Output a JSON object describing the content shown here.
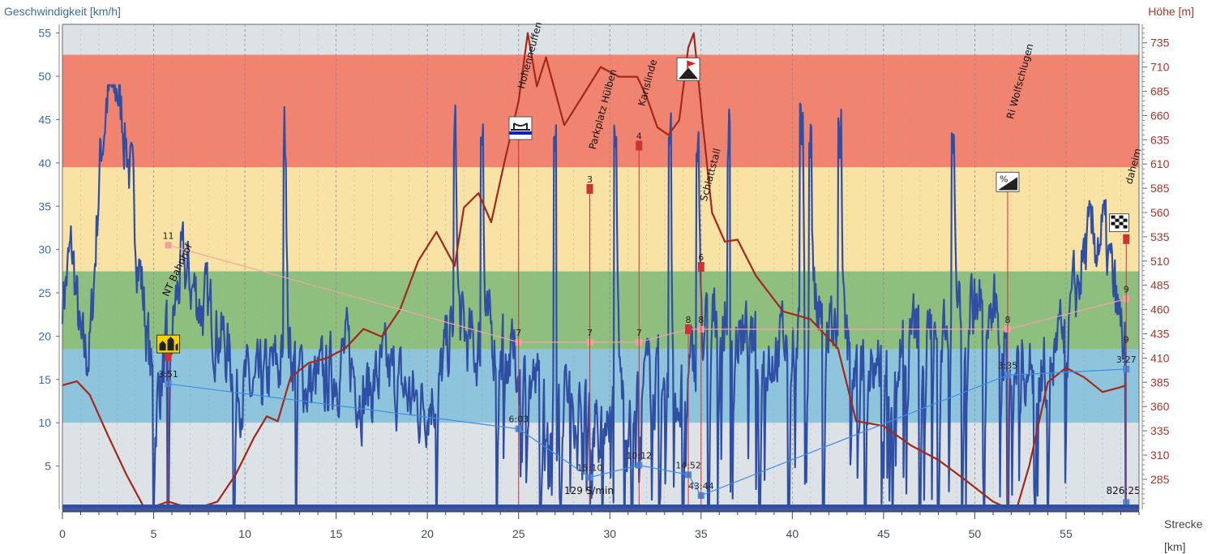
{
  "chart_data": {
    "type": "line",
    "xlabel": "Strecke",
    "xunit": "[km]",
    "ylabel_left": "Geschwindigkeit [km/h]",
    "ylabel_right": "Höhe [m]",
    "xlim": [
      0,
      59
    ],
    "ylim_left": [
      0,
      56
    ],
    "ylim_right": [
      254,
      754
    ],
    "x_ticks": [
      0,
      5,
      10,
      15,
      20,
      25,
      30,
      35,
      40,
      45,
      50,
      55
    ],
    "y_ticks_left": [
      5,
      10,
      15,
      20,
      25,
      30,
      35,
      40,
      45,
      50,
      55
    ],
    "y_ticks_right": [
      285,
      310,
      335,
      360,
      385,
      410,
      435,
      460,
      485,
      510,
      535,
      560,
      585,
      610,
      635,
      660,
      685,
      710,
      735
    ],
    "grid": true,
    "colors": {
      "speed": "#2f4fa4",
      "altitude": "#a3281b",
      "pulse": "#f2a5a5",
      "time_line": "#3c8de6",
      "zone_top": "#dde2e6",
      "zone_red": "#f08470",
      "zone_yellow": "#f8e2a4",
      "zone_green": "#8fbf7e",
      "zone_blue": "#8fc4dd",
      "zone_bottom": "#dde2e6",
      "axis_left": "#3a6aa8",
      "axis_right": "#a8342a",
      "bottom_bar": "#2f4fa4",
      "marker": "#cc3333"
    },
    "zones_kmh": [
      {
        "from": 0,
        "to": 10,
        "color_key": "zone_bottom"
      },
      {
        "from": 10,
        "to": 18.5,
        "color_key": "zone_blue"
      },
      {
        "from": 18.5,
        "to": 27.5,
        "color_key": "zone_green"
      },
      {
        "from": 27.5,
        "to": 39.5,
        "color_key": "zone_yellow"
      },
      {
        "from": 39.5,
        "to": 52.5,
        "color_key": "zone_red"
      },
      {
        "from": 52.5,
        "to": 56,
        "color_key": "zone_top"
      }
    ],
    "altitude": {
      "x": [
        0,
        0.8,
        1.5,
        2.5,
        3.5,
        4.5,
        5.2,
        5.8,
        6.5,
        7.5,
        8.5,
        9.5,
        10.5,
        11.2,
        11.8,
        12.5,
        13.5,
        14.5,
        15.5,
        16.5,
        17.5,
        18.5,
        19.5,
        20.5,
        21.5,
        22,
        22.8,
        23.5,
        24.2,
        25,
        25.5,
        26,
        26.5,
        27.5,
        28.5,
        29.5,
        30.5,
        31.5,
        32,
        32.6,
        33.2,
        33.8,
        34.3,
        34.6,
        35.1,
        35.6,
        36.3,
        37,
        38,
        39.5,
        41,
        42.5,
        43.5,
        45,
        46.5,
        48,
        49.5,
        51,
        51.8,
        52.3,
        53,
        54,
        55,
        56,
        57,
        58,
        58.3
      ],
      "y": [
        382,
        386,
        372,
        330,
        290,
        255,
        258,
        262,
        258,
        256,
        262,
        290,
        328,
        350,
        345,
        390,
        405,
        410,
        420,
        440,
        432,
        460,
        510,
        540,
        505,
        565,
        580,
        550,
        610,
        675,
        745,
        690,
        720,
        650,
        680,
        710,
        700,
        700,
        680,
        648,
        640,
        655,
        730,
        745,
        650,
        560,
        530,
        532,
        495,
        458,
        450,
        420,
        345,
        340,
        320,
        305,
        284,
        262,
        255,
        255,
        300,
        385,
        400,
        390,
        375,
        380,
        382
      ]
    },
    "pulse_line": {
      "x": [
        5.8,
        25,
        28.9,
        31.6,
        34.3,
        35,
        51.8,
        58.3,
        58.3
      ],
      "y": [
        30.5,
        19.3,
        19.3,
        19.3,
        20.8,
        20.8,
        20.8,
        24.3,
        24.3
      ]
    },
    "time_line": {
      "x": [
        5.8,
        25,
        28.9,
        31.6,
        34.3,
        35,
        51.8,
        58.3,
        58.3
      ],
      "y": [
        14.5,
        9.3,
        3.7,
        5.1,
        4.0,
        1.6,
        15.5,
        16.2,
        0.8
      ]
    },
    "vertical_markers": [
      {
        "x": 5.8,
        "top_y": 17.7,
        "num": "11",
        "num_y": 30.5,
        "time": "3:51",
        "time_y": 14.5
      },
      {
        "x": 25,
        "top_y": 43.2,
        "num": "7",
        "num_y": 19.3,
        "time": "6:03",
        "time_y": 9.3
      },
      {
        "x": 28.9,
        "top_y": 37.0,
        "num": "3",
        "num_y": 37,
        "num2": "7",
        "num2_y": 19.3,
        "time": "15:10",
        "time_y": 3.7
      },
      {
        "x": 31.6,
        "top_y": 42.0,
        "num": "4",
        "num_y": 42,
        "num2": "7",
        "num2_y": 19.3,
        "time": "10:12",
        "time_y": 5.1
      },
      {
        "x": 34.3,
        "top_y": 20.8,
        "num": "8",
        "num_y": 20.8,
        "time": "14:52",
        "time_y": 4.0
      },
      {
        "x": 35,
        "top_y": 28.0,
        "num": "6",
        "num_y": 28,
        "num2": "8",
        "num2_y": 20.8,
        "time": "43:44",
        "time_y": 1.6
      },
      {
        "x": 51.8,
        "top_y": 37.3,
        "num": "8",
        "num_y": 20.8,
        "time": "3:35",
        "time_y": 15.5
      },
      {
        "x": 58.3,
        "top_y": 31.2,
        "num": "9",
        "num_y": 24.3,
        "num2": "9",
        "num2_y": 18.5,
        "time": "3:27",
        "time_y": 16.2
      }
    ],
    "waypoints": [
      {
        "label": "NT Bahnhof",
        "x": 5.8,
        "y": 24.5,
        "angle": -65
      },
      {
        "label": "Hohenneuffen",
        "x": 25.3,
        "y": 48.5,
        "angle": -75
      },
      {
        "label": "Parkplatz Hülben",
        "x": 29.2,
        "y": 41.5,
        "angle": -75
      },
      {
        "label": "Karlslinde",
        "x": 31.9,
        "y": 46.5,
        "angle": -75
      },
      {
        "label": "Schlattstall",
        "x": 35.3,
        "y": 35.5,
        "angle": -75
      },
      {
        "label": "Ri Wolfschlugen",
        "x": 52.1,
        "y": 45.0,
        "angle": -75
      },
      {
        "label": "daheim",
        "x": 58.6,
        "y": 37.5,
        "angle": -75
      }
    ],
    "annotations": [
      {
        "text": "129 S/min",
        "x": 27.5,
        "y": 1.2
      },
      {
        "text": "826:25",
        "x": 57.2,
        "y": 1.2
      }
    ],
    "icons": [
      {
        "name": "rest-stop-icon",
        "x": 5.8,
        "y": 19.0
      },
      {
        "name": "bridge-icon",
        "x": 25.1,
        "y": 44.2
      },
      {
        "name": "summit-flag-icon",
        "x": 34.3,
        "y": 51.0
      },
      {
        "name": "gradient-icon",
        "x": 51.8,
        "y": 37.8
      },
      {
        "name": "finish-flag-icon",
        "x": 58.0,
        "y": 33.0
      }
    ]
  }
}
